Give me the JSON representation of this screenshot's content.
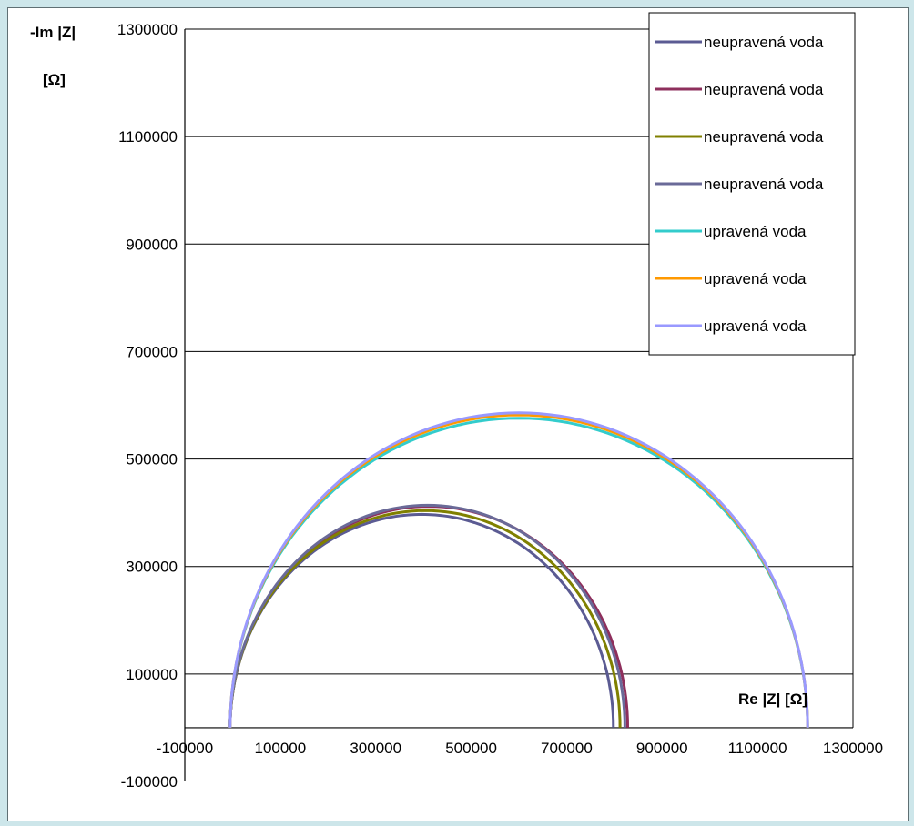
{
  "chart_data": {
    "type": "line",
    "title": "",
    "xlabel": "Re |Z| [Ω]",
    "ylabel_line1": "-Im |Z|",
    "ylabel_line2": "[Ω]",
    "xlim": [
      -100000,
      1300000
    ],
    "ylim": [
      -100000,
      1300000
    ],
    "x_tick_step": 200000,
    "y_tick_step": 200000,
    "x_ticks": [
      "-100000",
      "100000",
      "300000",
      "500000",
      "700000",
      "900000",
      "1100000",
      "1300000"
    ],
    "y_ticks": [
      "-100000",
      "100000",
      "300000",
      "500000",
      "700000",
      "900000",
      "1100000",
      "1300000"
    ],
    "grid": "horizontal",
    "legend_position": "top-right",
    "series": [
      {
        "name": "neupravená voda",
        "color": "#5b5b93",
        "x_min": -5000,
        "x_max": 798000,
        "peak": 397000
      },
      {
        "name": "neupravená voda",
        "color": "#8e2f5c",
        "x_min": -5000,
        "x_max": 828000,
        "peak": 412000
      },
      {
        "name": "neupravená voda",
        "color": "#808000",
        "x_min": -5000,
        "x_max": 812000,
        "peak": 404000
      },
      {
        "name": "neupravená voda",
        "color": "#6a6a98",
        "x_min": -5000,
        "x_max": 822000,
        "peak": 414000
      },
      {
        "name": "upravená voda",
        "color": "#33cccc",
        "x_min": -5000,
        "x_max": 1205000,
        "peak": 576000
      },
      {
        "name": "upravená voda",
        "color": "#ff9900",
        "x_min": -5000,
        "x_max": 1205000,
        "peak": 582000
      },
      {
        "name": "upravená voda",
        "color": "#9999ff",
        "x_min": -5000,
        "x_max": 1205000,
        "peak": 586000
      }
    ]
  }
}
